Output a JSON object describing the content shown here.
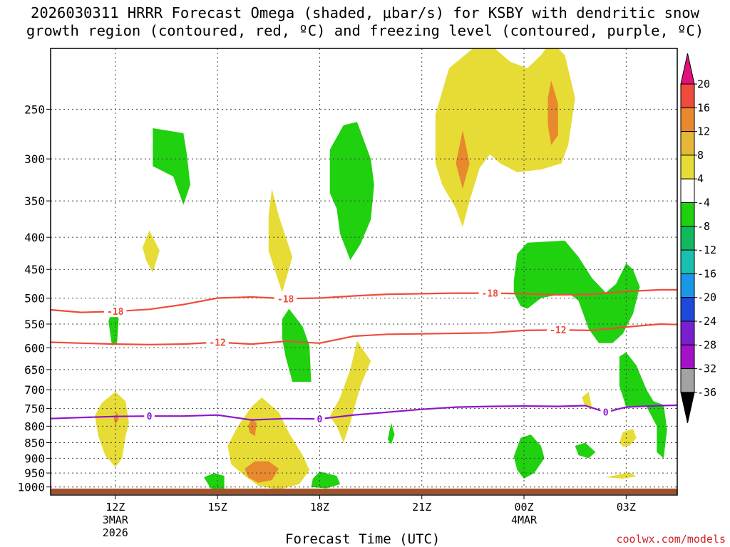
{
  "title_line1": "2026030311 HRRR Forecast Omega (shaded, μbar/s) for KSBY with dendritic snow",
  "title_line2": "growth region (contoured, red, ºC) and freezing level (contoured, purple, ºC)",
  "credit": "coolwx.com/models",
  "chart_data": {
    "type": "time-height cross section",
    "x_title": "Forecast Time (UTC)",
    "x_range_hours": [
      -0.9,
      17.5
    ],
    "y_range_mb": [
      1030,
      200
    ],
    "y_ticks": [
      250,
      300,
      350,
      400,
      450,
      500,
      550,
      600,
      650,
      700,
      750,
      800,
      850,
      900,
      950,
      1000
    ],
    "x_ticks": [
      {
        "hour": 1,
        "label": "12Z",
        "sub1": "3MAR",
        "sub2": "2026"
      },
      {
        "hour": 4,
        "label": "15Z",
        "sub1": "",
        "sub2": ""
      },
      {
        "hour": 7,
        "label": "18Z",
        "sub1": "",
        "sub2": ""
      },
      {
        "hour": 10,
        "label": "21Z",
        "sub1": "",
        "sub2": ""
      },
      {
        "hour": 13,
        "label": "00Z",
        "sub1": "4MAR",
        "sub2": ""
      },
      {
        "hour": 16,
        "label": "03Z",
        "sub1": "",
        "sub2": ""
      }
    ],
    "colorbar": {
      "labels": [
        "20",
        "16",
        "12",
        "8",
        "4",
        "-4",
        "-8",
        "-12",
        "-16",
        "-20",
        "-24",
        "-28",
        "-32",
        "-36"
      ],
      "colors": [
        "#e4107a",
        "#ef4b3c",
        "#e8892e",
        "#e6b83a",
        "#e6dc35",
        "#ffffff",
        "#1fd10f",
        "#0fb95c",
        "#19c0b0",
        "#1a96e6",
        "#1e4ad9",
        "#7a1fd0",
        "#a411c7",
        "#a3a3a3",
        "#000000"
      ]
    },
    "contours": [
      {
        "name": "dgz-minus18",
        "level_label": "-18",
        "color": "#ef4b3c",
        "points": [
          [
            -0.9,
            522
          ],
          [
            0,
            527
          ],
          [
            1,
            525
          ],
          [
            2,
            521
          ],
          [
            3,
            512
          ],
          [
            4,
            500
          ],
          [
            5,
            498
          ],
          [
            6,
            501
          ],
          [
            7,
            500
          ],
          [
            8,
            496
          ],
          [
            9,
            493
          ],
          [
            10,
            492
          ],
          [
            11,
            491
          ],
          [
            12,
            491
          ],
          [
            13,
            492
          ],
          [
            14,
            494
          ],
          [
            15,
            493
          ],
          [
            16,
            488
          ],
          [
            17,
            485
          ],
          [
            17.5,
            485
          ]
        ],
        "label_hours": [
          1,
          6,
          12
        ]
      },
      {
        "name": "dgz-minus12",
        "level_label": "-12",
        "color": "#ef4b3c",
        "points": [
          [
            -0.9,
            588
          ],
          [
            0,
            590
          ],
          [
            1,
            592
          ],
          [
            2,
            593
          ],
          [
            3,
            592
          ],
          [
            4,
            588
          ],
          [
            5,
            592
          ],
          [
            6,
            586
          ],
          [
            7,
            590
          ],
          [
            8,
            575
          ],
          [
            9,
            571
          ],
          [
            10,
            570
          ],
          [
            11,
            569
          ],
          [
            12,
            568
          ],
          [
            13,
            563
          ],
          [
            14,
            562
          ],
          [
            15,
            563
          ],
          [
            16,
            556
          ],
          [
            17,
            550
          ],
          [
            17.5,
            551
          ]
        ],
        "label_hours": [
          4,
          14
        ]
      },
      {
        "name": "freezing-level",
        "level_label": "0",
        "color": "#8e13cc",
        "points": [
          [
            -0.9,
            778
          ],
          [
            0,
            775
          ],
          [
            1,
            772
          ],
          [
            2,
            771
          ],
          [
            3,
            771
          ],
          [
            4,
            768
          ],
          [
            5,
            782
          ],
          [
            6,
            778
          ],
          [
            7,
            779
          ],
          [
            8,
            768
          ],
          [
            9,
            760
          ],
          [
            10,
            752
          ],
          [
            11,
            746
          ],
          [
            12,
            744
          ],
          [
            13,
            743
          ],
          [
            14,
            744
          ],
          [
            14.8,
            742
          ],
          [
            15.4,
            760
          ],
          [
            16,
            746
          ],
          [
            17,
            742
          ],
          [
            17.5,
            741
          ]
        ],
        "label_hours": [
          2,
          7,
          15.4
        ]
      }
    ],
    "shaded": [
      {
        "fill": "#e6dc35",
        "pts": [
          [
            0.4,
            770
          ],
          [
            0.6,
            735
          ],
          [
            1,
            705
          ],
          [
            1.3,
            730
          ],
          [
            1.4,
            790
          ],
          [
            1.3,
            830
          ],
          [
            1.2,
            900
          ],
          [
            1,
            930
          ],
          [
            0.7,
            890
          ],
          [
            0.5,
            830
          ]
        ]
      },
      {
        "fill": "#e6dc35",
        "pts": [
          [
            1.8,
            415
          ],
          [
            2,
            390
          ],
          [
            2.3,
            420
          ],
          [
            2.1,
            455
          ],
          [
            1.9,
            435
          ]
        ]
      },
      {
        "fill": "#e6dc35",
        "pts": [
          [
            5.6,
            335
          ],
          [
            5.8,
            370
          ],
          [
            6.2,
            430
          ],
          [
            5.9,
            490
          ],
          [
            5.5,
            420
          ],
          [
            5.5,
            370
          ]
        ]
      },
      {
        "fill": "#e6dc35",
        "pts": [
          [
            4.3,
            860
          ],
          [
            4.6,
            800
          ],
          [
            5,
            745
          ],
          [
            5.3,
            720
          ],
          [
            5.8,
            760
          ],
          [
            6.1,
            820
          ],
          [
            6.5,
            890
          ],
          [
            6.7,
            940
          ],
          [
            6.4,
            990
          ],
          [
            5.8,
            1010
          ],
          [
            5.2,
            995
          ],
          [
            4.8,
            960
          ],
          [
            4.4,
            920
          ]
        ]
      },
      {
        "fill": "#e6dc35",
        "pts": [
          [
            7.3,
            772
          ],
          [
            7.6,
            720
          ],
          [
            7.9,
            650
          ],
          [
            8.1,
            585
          ],
          [
            8.5,
            630
          ],
          [
            8.2,
            690
          ],
          [
            7.9,
            790
          ],
          [
            7.7,
            850
          ],
          [
            7.5,
            800
          ]
        ]
      },
      {
        "fill": "#e6dc35",
        "pts": [
          [
            10.4,
            305
          ],
          [
            10.4,
            255
          ],
          [
            10.8,
            215
          ],
          [
            11.5,
            200
          ],
          [
            12,
            197
          ],
          [
            12.6,
            210
          ],
          [
            13.1,
            215
          ],
          [
            13.5,
            205
          ],
          [
            13.8,
            195
          ],
          [
            14.2,
            205
          ],
          [
            14.5,
            240
          ],
          [
            14.3,
            285
          ],
          [
            14.1,
            305
          ],
          [
            13.5,
            312
          ],
          [
            12.8,
            315
          ],
          [
            12.3,
            305
          ],
          [
            12,
            295
          ],
          [
            11.7,
            310
          ],
          [
            11.4,
            350
          ],
          [
            11.2,
            385
          ],
          [
            11,
            360
          ],
          [
            10.6,
            330
          ]
        ]
      },
      {
        "fill": "#e6dc35",
        "pts": [
          [
            14.7,
            720
          ],
          [
            14.9,
            705
          ],
          [
            15,
            750
          ],
          [
            14.8,
            745
          ]
        ]
      },
      {
        "fill": "#e6dc35",
        "pts": [
          [
            15.8,
            850
          ],
          [
            15.9,
            818
          ],
          [
            16.2,
            808
          ],
          [
            16.3,
            835
          ],
          [
            16.1,
            860
          ],
          [
            15.9,
            862
          ]
        ]
      },
      {
        "fill": "#e6dc35",
        "pts": [
          [
            15.4,
            965
          ],
          [
            15.8,
            955
          ],
          [
            16.1,
            948
          ],
          [
            16.3,
            962
          ],
          [
            15.9,
            970
          ]
        ]
      },
      {
        "fill": "#e8892e",
        "pts": [
          [
            0.95,
            775
          ],
          [
            1.05,
            760
          ],
          [
            1.1,
            780
          ],
          [
            1.0,
            795
          ]
        ]
      },
      {
        "fill": "#e8892e",
        "pts": [
          [
            4.9,
            800
          ],
          [
            5.0,
            778
          ],
          [
            5.15,
            790
          ],
          [
            5.1,
            830
          ],
          [
            4.95,
            820
          ]
        ]
      },
      {
        "fill": "#e8892e",
        "pts": [
          [
            4.8,
            935
          ],
          [
            5.1,
            910
          ],
          [
            5.5,
            910
          ],
          [
            5.8,
            935
          ],
          [
            5.6,
            975
          ],
          [
            5.2,
            985
          ],
          [
            4.9,
            965
          ]
        ]
      },
      {
        "fill": "#e8892e",
        "pts": [
          [
            11.0,
            305
          ],
          [
            11.2,
            270
          ],
          [
            11.4,
            305
          ],
          [
            11.2,
            335
          ]
        ]
      },
      {
        "fill": "#e8892e",
        "pts": [
          [
            13.7,
            240
          ],
          [
            13.8,
            225
          ],
          [
            14.0,
            245
          ],
          [
            14.0,
            275
          ],
          [
            13.8,
            285
          ],
          [
            13.7,
            265
          ]
        ]
      },
      {
        "fill": "#1fd10f",
        "pts": [
          [
            0.8,
            545
          ],
          [
            0.95,
            510
          ],
          [
            1.1,
            540
          ],
          [
            1.05,
            590
          ],
          [
            0.9,
            595
          ]
        ]
      },
      {
        "fill": "#1fd10f",
        "pts": [
          [
            2.1,
            268
          ],
          [
            3.0,
            273
          ],
          [
            3.1,
            295
          ],
          [
            3.2,
            330
          ],
          [
            3.0,
            355
          ],
          [
            2.7,
            320
          ],
          [
            2.1,
            308
          ]
        ]
      },
      {
        "fill": "#1fd10f",
        "pts": [
          [
            3.6,
            965
          ],
          [
            3.9,
            950
          ],
          [
            4.2,
            960
          ],
          [
            4.2,
            1010
          ],
          [
            3.8,
            1005
          ]
        ]
      },
      {
        "fill": "#1fd10f",
        "pts": [
          [
            5.9,
            540
          ],
          [
            6.1,
            520
          ],
          [
            6.5,
            555
          ],
          [
            6.7,
            595
          ],
          [
            6.75,
            680
          ],
          [
            6.2,
            680
          ],
          [
            6.0,
            620
          ],
          [
            5.9,
            580
          ]
        ]
      },
      {
        "fill": "#1fd10f",
        "pts": [
          [
            6.75,
            1000
          ],
          [
            6.8,
            970
          ],
          [
            7.0,
            945
          ],
          [
            7.5,
            960
          ],
          [
            7.6,
            990
          ],
          [
            7.2,
            1005
          ]
        ]
      },
      {
        "fill": "#1fd10f",
        "pts": [
          [
            7.3,
            340
          ],
          [
            7.3,
            290
          ],
          [
            7.7,
            265
          ],
          [
            8.1,
            262
          ],
          [
            8.5,
            300
          ],
          [
            8.6,
            330
          ],
          [
            8.5,
            375
          ],
          [
            8.2,
            410
          ],
          [
            7.9,
            435
          ],
          [
            7.6,
            395
          ],
          [
            7.5,
            360
          ]
        ]
      },
      {
        "fill": "#1fd10f",
        "pts": [
          [
            9.0,
            840
          ],
          [
            9.1,
            790
          ],
          [
            9.2,
            825
          ],
          [
            9.1,
            855
          ]
        ]
      },
      {
        "fill": "#1fd10f",
        "pts": [
          [
            12.7,
            470
          ],
          [
            12.8,
            425
          ],
          [
            13.1,
            408
          ],
          [
            14.2,
            405
          ],
          [
            14.6,
            430
          ],
          [
            15.0,
            465
          ],
          [
            15.4,
            490
          ],
          [
            15.7,
            475
          ],
          [
            16.0,
            440
          ],
          [
            16.2,
            450
          ],
          [
            16.4,
            480
          ],
          [
            16.2,
            530
          ],
          [
            15.9,
            570
          ],
          [
            15.6,
            590
          ],
          [
            15.2,
            590
          ],
          [
            14.9,
            560
          ],
          [
            14.6,
            505
          ],
          [
            14.4,
            495
          ],
          [
            13.9,
            495
          ],
          [
            13.5,
            500
          ],
          [
            13.1,
            520
          ],
          [
            12.9,
            515
          ],
          [
            12.7,
            490
          ]
        ]
      },
      {
        "fill": "#1fd10f",
        "pts": [
          [
            12.7,
            895
          ],
          [
            12.9,
            835
          ],
          [
            13.2,
            825
          ],
          [
            13.5,
            860
          ],
          [
            13.6,
            900
          ],
          [
            13.3,
            950
          ],
          [
            13.0,
            970
          ],
          [
            12.8,
            940
          ]
        ]
      },
      {
        "fill": "#1fd10f",
        "pts": [
          [
            14.5,
            860
          ],
          [
            14.8,
            850
          ],
          [
            15.1,
            880
          ],
          [
            14.9,
            900
          ],
          [
            14.6,
            890
          ]
        ]
      },
      {
        "fill": "#1fd10f",
        "pts": [
          [
            15.8,
            620
          ],
          [
            16.0,
            610
          ],
          [
            16.3,
            640
          ],
          [
            16.6,
            700
          ],
          [
            16.8,
            730
          ],
          [
            17.1,
            740
          ],
          [
            17.2,
            810
          ],
          [
            17.1,
            900
          ],
          [
            16.9,
            880
          ],
          [
            16.9,
            800
          ],
          [
            16.6,
            745
          ],
          [
            16.0,
            745
          ],
          [
            15.8,
            690
          ]
        ]
      }
    ]
  }
}
